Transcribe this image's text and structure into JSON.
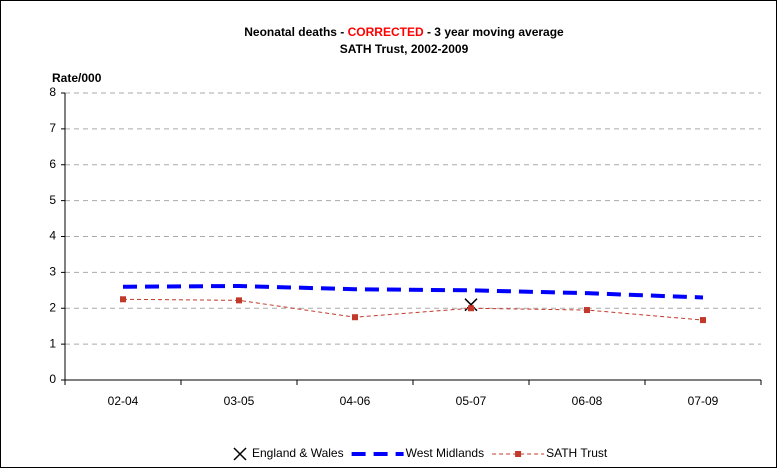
{
  "chart_data": {
    "type": "line",
    "title_parts": [
      "Neonatal deaths - ",
      "CORRECTED",
      " - 3 year moving average"
    ],
    "subtitle": "SATH Trust, 2002-2009",
    "y_label": "Rate/000",
    "categories": [
      "02-04",
      "03-05",
      "04-06",
      "05-07",
      "06-08",
      "07-09"
    ],
    "series": [
      {
        "name": "England & Wales",
        "color": "#000000",
        "values": [
          null,
          null,
          null,
          2.1,
          null,
          null
        ]
      },
      {
        "name": "West Midlands",
        "color": "#0000ff",
        "values": [
          2.6,
          2.62,
          2.53,
          2.5,
          2.42,
          2.3
        ]
      },
      {
        "name": "SATH Trust",
        "color": "#c0392b",
        "values": [
          2.25,
          2.22,
          1.75,
          2.0,
          1.95,
          1.67
        ]
      }
    ],
    "ylim": [
      0,
      8
    ],
    "yticks": [
      0,
      1,
      2,
      3,
      4,
      5,
      6,
      7,
      8
    ],
    "grid": true,
    "legend": "bottom",
    "title_highlight_color": "#ff0000"
  }
}
